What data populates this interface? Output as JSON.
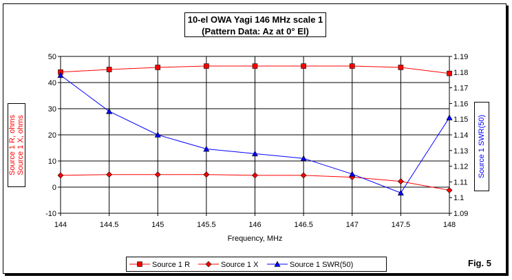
{
  "figure_label": "Fig. 5",
  "chart_data": {
    "type": "line",
    "title": [
      "10-el OWA Yagi 146 MHz scale 1",
      "(Pattern Data: Az at 0° El)"
    ],
    "xlabel": "Frequency, MHz",
    "ylabel": [
      "Source 1 R, ohms",
      "Source 1 X, ohms"
    ],
    "y2label": "Source 1 SWR(50)",
    "x": [
      144,
      144.5,
      145,
      145.5,
      146,
      146.5,
      147,
      147.5,
      148
    ],
    "xlim": [
      144,
      148
    ],
    "ylim": [
      -10,
      50
    ],
    "y2lim": [
      1.09,
      1.19
    ],
    "yticks": [
      -10,
      0,
      10,
      20,
      30,
      40,
      50
    ],
    "y2ticks": [
      "1.09",
      "1.1",
      "1.11",
      "1.12",
      "1.13",
      "1.14",
      "1.15",
      "1.16",
      "1.17",
      "1.18",
      "1.19"
    ],
    "grid": true,
    "legend_position": "bottom",
    "series": [
      {
        "name": "Source 1 R",
        "axis": "left",
        "marker": "square",
        "color": "#ff0000",
        "values": [
          44,
          45,
          45.8,
          46.3,
          46.3,
          46.3,
          46.3,
          45.8,
          43.5
        ]
      },
      {
        "name": "Source 1 X",
        "axis": "left",
        "marker": "diamond",
        "color": "#ff0000",
        "values": [
          4.5,
          4.8,
          4.8,
          4.8,
          4.5,
          4.5,
          3.8,
          2.2,
          -1.2
        ]
      },
      {
        "name": "Source 1 SWR(50)",
        "axis": "right",
        "marker": "triangle",
        "color": "#0000ff",
        "values": [
          1.178,
          1.155,
          1.14,
          1.131,
          1.128,
          1.125,
          1.115,
          1.103,
          1.151
        ]
      }
    ]
  }
}
